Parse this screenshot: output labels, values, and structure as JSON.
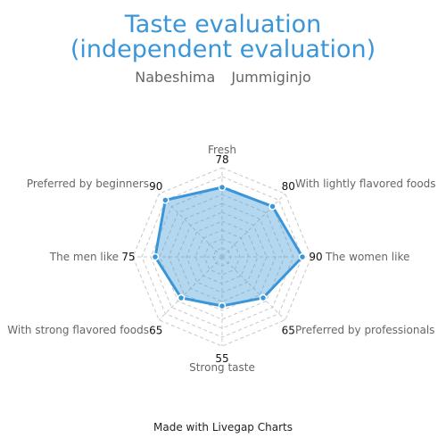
{
  "title_line1": "Taste evaluation",
  "title_line2": "(independent evaluation)",
  "subtitle": {
    "part1": "Nabeshima",
    "part2": "Jummiginjo"
  },
  "footer": "Made with Livegap Charts",
  "chart_data": {
    "type": "radar",
    "categories": [
      "Fresh",
      "With lightly flavored foods",
      "The women like",
      "Preferred by professionals",
      "Strong taste",
      "With strong flavored foods",
      "The men like",
      "Preferred by beginners"
    ],
    "series": [
      {
        "values": [
          78,
          80,
          90,
          65,
          55,
          65,
          75,
          90
        ]
      }
    ],
    "range": [
      0,
      100
    ],
    "grid_levels": 10,
    "grid": true,
    "colors": {
      "line": "#3a96d8",
      "fill": "#3a96d8",
      "grid": "#c8c8c8",
      "label": "#666666",
      "value": "#111111"
    }
  }
}
